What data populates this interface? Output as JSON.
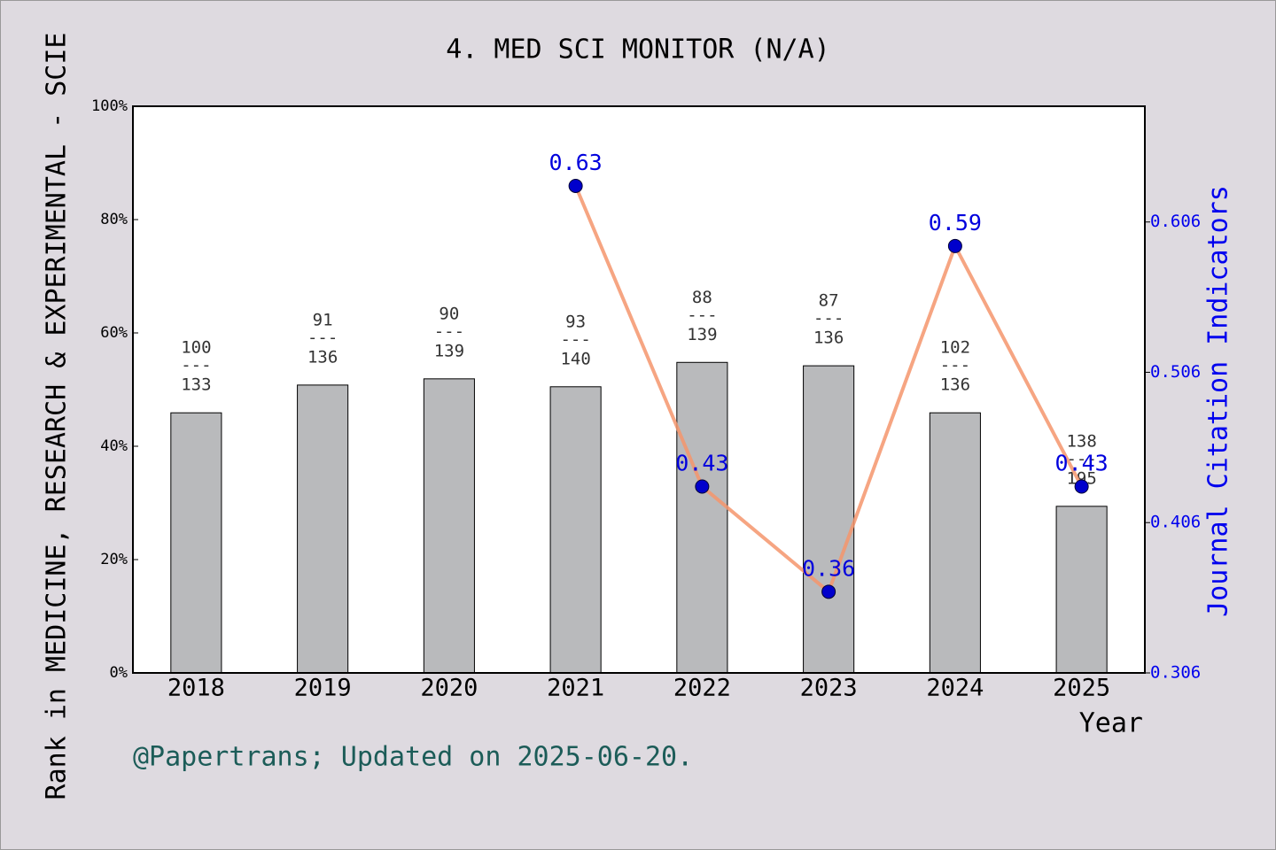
{
  "chart_data": {
    "type": "bar",
    "title": "4. MED SCI MONITOR (N/A)",
    "y_label": "Rank in MEDICINE, RESEARCH & EXPERIMENTAL - SCIE",
    "y2_label": "Journal Citation Indicators",
    "x_label": "Year",
    "annotation": "@Papertrans; Updated on 2025-06-20.",
    "categories": [
      "2018",
      "2019",
      "2020",
      "2021",
      "2022",
      "2023",
      "2024",
      "2025"
    ],
    "series": [
      {
        "type": "bar",
        "color": "#b9babc",
        "values": [
          45.9,
          50.8,
          51.9,
          50.5,
          54.8,
          54.2,
          45.9,
          29.4
        ]
      },
      {
        "type": "line",
        "axis": "y2",
        "color": "#f4956c",
        "marker_color": "#0000cc",
        "label_color": "#0000dd",
        "values": [
          null,
          null,
          null,
          0.63,
          0.43,
          0.36,
          0.59,
          0.43
        ]
      }
    ],
    "rank": [
      100,
      91,
      90,
      93,
      88,
      87,
      102,
      138
    ],
    "rank_separator": "---",
    "total": [
      133,
      136,
      139,
      140,
      139,
      136,
      136,
      195
    ],
    "ylim": [
      0,
      100
    ],
    "yticks": [
      {
        "value": 0,
        "label": "0%"
      },
      {
        "value": 20,
        "label": "20%"
      },
      {
        "value": 40,
        "label": "40%"
      },
      {
        "value": 60,
        "label": "60%"
      },
      {
        "value": 80,
        "label": "80%"
      },
      {
        "value": 100,
        "label": "100%"
      }
    ],
    "y2lim": [
      0.306,
      0.683
    ],
    "y2ticks": [
      0.306,
      0.406,
      0.506,
      0.606
    ]
  }
}
